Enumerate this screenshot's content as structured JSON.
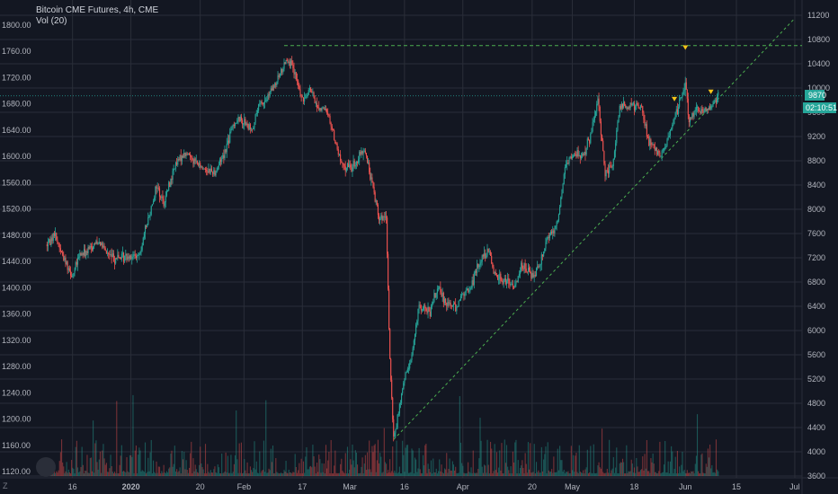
{
  "header": {
    "title": "Bitcoin CME Futures, 4h, CME",
    "indicator": "Vol (20)"
  },
  "price_badges": {
    "last_price": "9870",
    "countdown": "02:10:51"
  },
  "corner_label": "Z",
  "chart_data": {
    "type": "candlestick",
    "left_axis": {
      "ticks": [
        "1120.00",
        "1160.00",
        "1200.00",
        "1240.00",
        "1280.00",
        "1320.00",
        "1360.00",
        "1400.00",
        "1440.00",
        "1480.00",
        "1520.00",
        "1560.00",
        "1600.00",
        "1640.00",
        "1680.00",
        "1720.00",
        "1760.00",
        "1800.00"
      ],
      "range": [
        1120,
        1800
      ]
    },
    "right_axis": {
      "ticks": [
        "3600",
        "4000",
        "4400",
        "4800",
        "5200",
        "5600",
        "6000",
        "6400",
        "6800",
        "7200",
        "7600",
        "8000",
        "8400",
        "8800",
        "9200",
        "9600",
        "10000",
        "10400",
        "10800",
        "11200"
      ],
      "range": [
        3600,
        11200
      ]
    },
    "x_axis": {
      "ticks": [
        "16",
        "2020",
        "20",
        "Feb",
        "17",
        "Mar",
        "16",
        "Apr",
        "20",
        "May",
        "18",
        "Jun",
        "15",
        "Jul"
      ]
    },
    "price_path": [
      [
        "2019-12-09",
        7420
      ],
      [
        "2019-12-11",
        7600
      ],
      [
        "2019-12-13",
        7280
      ],
      [
        "2019-12-16",
        6900
      ],
      [
        "2019-12-18",
        7250
      ],
      [
        "2019-12-20",
        7300
      ],
      [
        "2019-12-23",
        7500
      ],
      [
        "2019-12-25",
        7300
      ],
      [
        "2019-12-27",
        7200
      ],
      [
        "2019-12-30",
        7200
      ],
      [
        "2020-01-01",
        7250
      ],
      [
        "2020-01-03",
        7200
      ],
      [
        "2020-01-06",
        7900
      ],
      [
        "2020-01-08",
        8400
      ],
      [
        "2020-01-10",
        8100
      ],
      [
        "2020-01-13",
        8700
      ],
      [
        "2020-01-15",
        8900
      ],
      [
        "2020-01-17",
        8900
      ],
      [
        "2020-01-20",
        8700
      ],
      [
        "2020-01-22",
        8650
      ],
      [
        "2020-01-24",
        8600
      ],
      [
        "2020-01-27",
        9000
      ],
      [
        "2020-01-29",
        9400
      ],
      [
        "2020-01-31",
        9500
      ],
      [
        "2020-02-03",
        9300
      ],
      [
        "2020-02-05",
        9700
      ],
      [
        "2020-02-07",
        9800
      ],
      [
        "2020-02-10",
        10100
      ],
      [
        "2020-02-12",
        10400
      ],
      [
        "2020-02-13",
        10500
      ],
      [
        "2020-02-15",
        10200
      ],
      [
        "2020-02-17",
        9800
      ],
      [
        "2020-02-19",
        10000
      ],
      [
        "2020-02-21",
        9700
      ],
      [
        "2020-02-24",
        9600
      ],
      [
        "2020-02-26",
        9100
      ],
      [
        "2020-02-28",
        8700
      ],
      [
        "2020-03-02",
        8700
      ],
      [
        "2020-03-05",
        9000
      ],
      [
        "2020-03-09",
        7900
      ],
      [
        "2020-03-11",
        7800
      ],
      [
        "2020-03-12",
        5500
      ],
      [
        "2020-03-13",
        4200
      ],
      [
        "2020-03-16",
        5200
      ],
      [
        "2020-03-18",
        5600
      ],
      [
        "2020-03-20",
        6400
      ],
      [
        "2020-03-23",
        6300
      ],
      [
        "2020-03-25",
        6700
      ],
      [
        "2020-03-27",
        6500
      ],
      [
        "2020-03-30",
        6400
      ],
      [
        "2020-04-01",
        6600
      ],
      [
        "2020-04-03",
        6700
      ],
      [
        "2020-04-06",
        7200
      ],
      [
        "2020-04-08",
        7300
      ],
      [
        "2020-04-10",
        6900
      ],
      [
        "2020-04-13",
        6800
      ],
      [
        "2020-04-15",
        6700
      ],
      [
        "2020-04-17",
        7100
      ],
      [
        "2020-04-20",
        6900
      ],
      [
        "2020-04-22",
        7100
      ],
      [
        "2020-04-24",
        7500
      ],
      [
        "2020-04-27",
        7800
      ],
      [
        "2020-04-29",
        8700
      ],
      [
        "2020-05-01",
        8900
      ],
      [
        "2020-05-04",
        8900
      ],
      [
        "2020-05-06",
        9200
      ],
      [
        "2020-05-08",
        9800
      ],
      [
        "2020-05-10",
        8600
      ],
      [
        "2020-05-12",
        8700
      ],
      [
        "2020-05-14",
        9700
      ],
      [
        "2020-05-18",
        9700
      ],
      [
        "2020-05-20",
        9700
      ],
      [
        "2020-05-22",
        9100
      ],
      [
        "2020-05-25",
        8900
      ],
      [
        "2020-05-27",
        9100
      ],
      [
        "2020-05-29",
        9500
      ],
      [
        "2020-06-01",
        10100
      ],
      [
        "2020-06-02",
        9500
      ],
      [
        "2020-06-04",
        9600
      ],
      [
        "2020-06-08",
        9700
      ],
      [
        "2020-06-10",
        9870
      ]
    ],
    "volume_range": [
      0,
      40000
    ],
    "volume_peak": 32000,
    "colors": {
      "up": "#26a69a",
      "down": "#ef5350",
      "trendline": "#4caf50",
      "grid": "#2a2e39",
      "price_line": "#26a69a",
      "marker": "#f5c518",
      "background": "#131722"
    },
    "resistance_level": 10700,
    "trendline_points": [
      [
        "2020-03-13",
        4200
      ],
      [
        "2020-07-01",
        11150
      ]
    ],
    "markers": [
      [
        "2020-06-01",
        10600
      ],
      [
        "2020-05-29",
        9750
      ],
      [
        "2020-06-08",
        9870
      ]
    ],
    "grid": true
  }
}
